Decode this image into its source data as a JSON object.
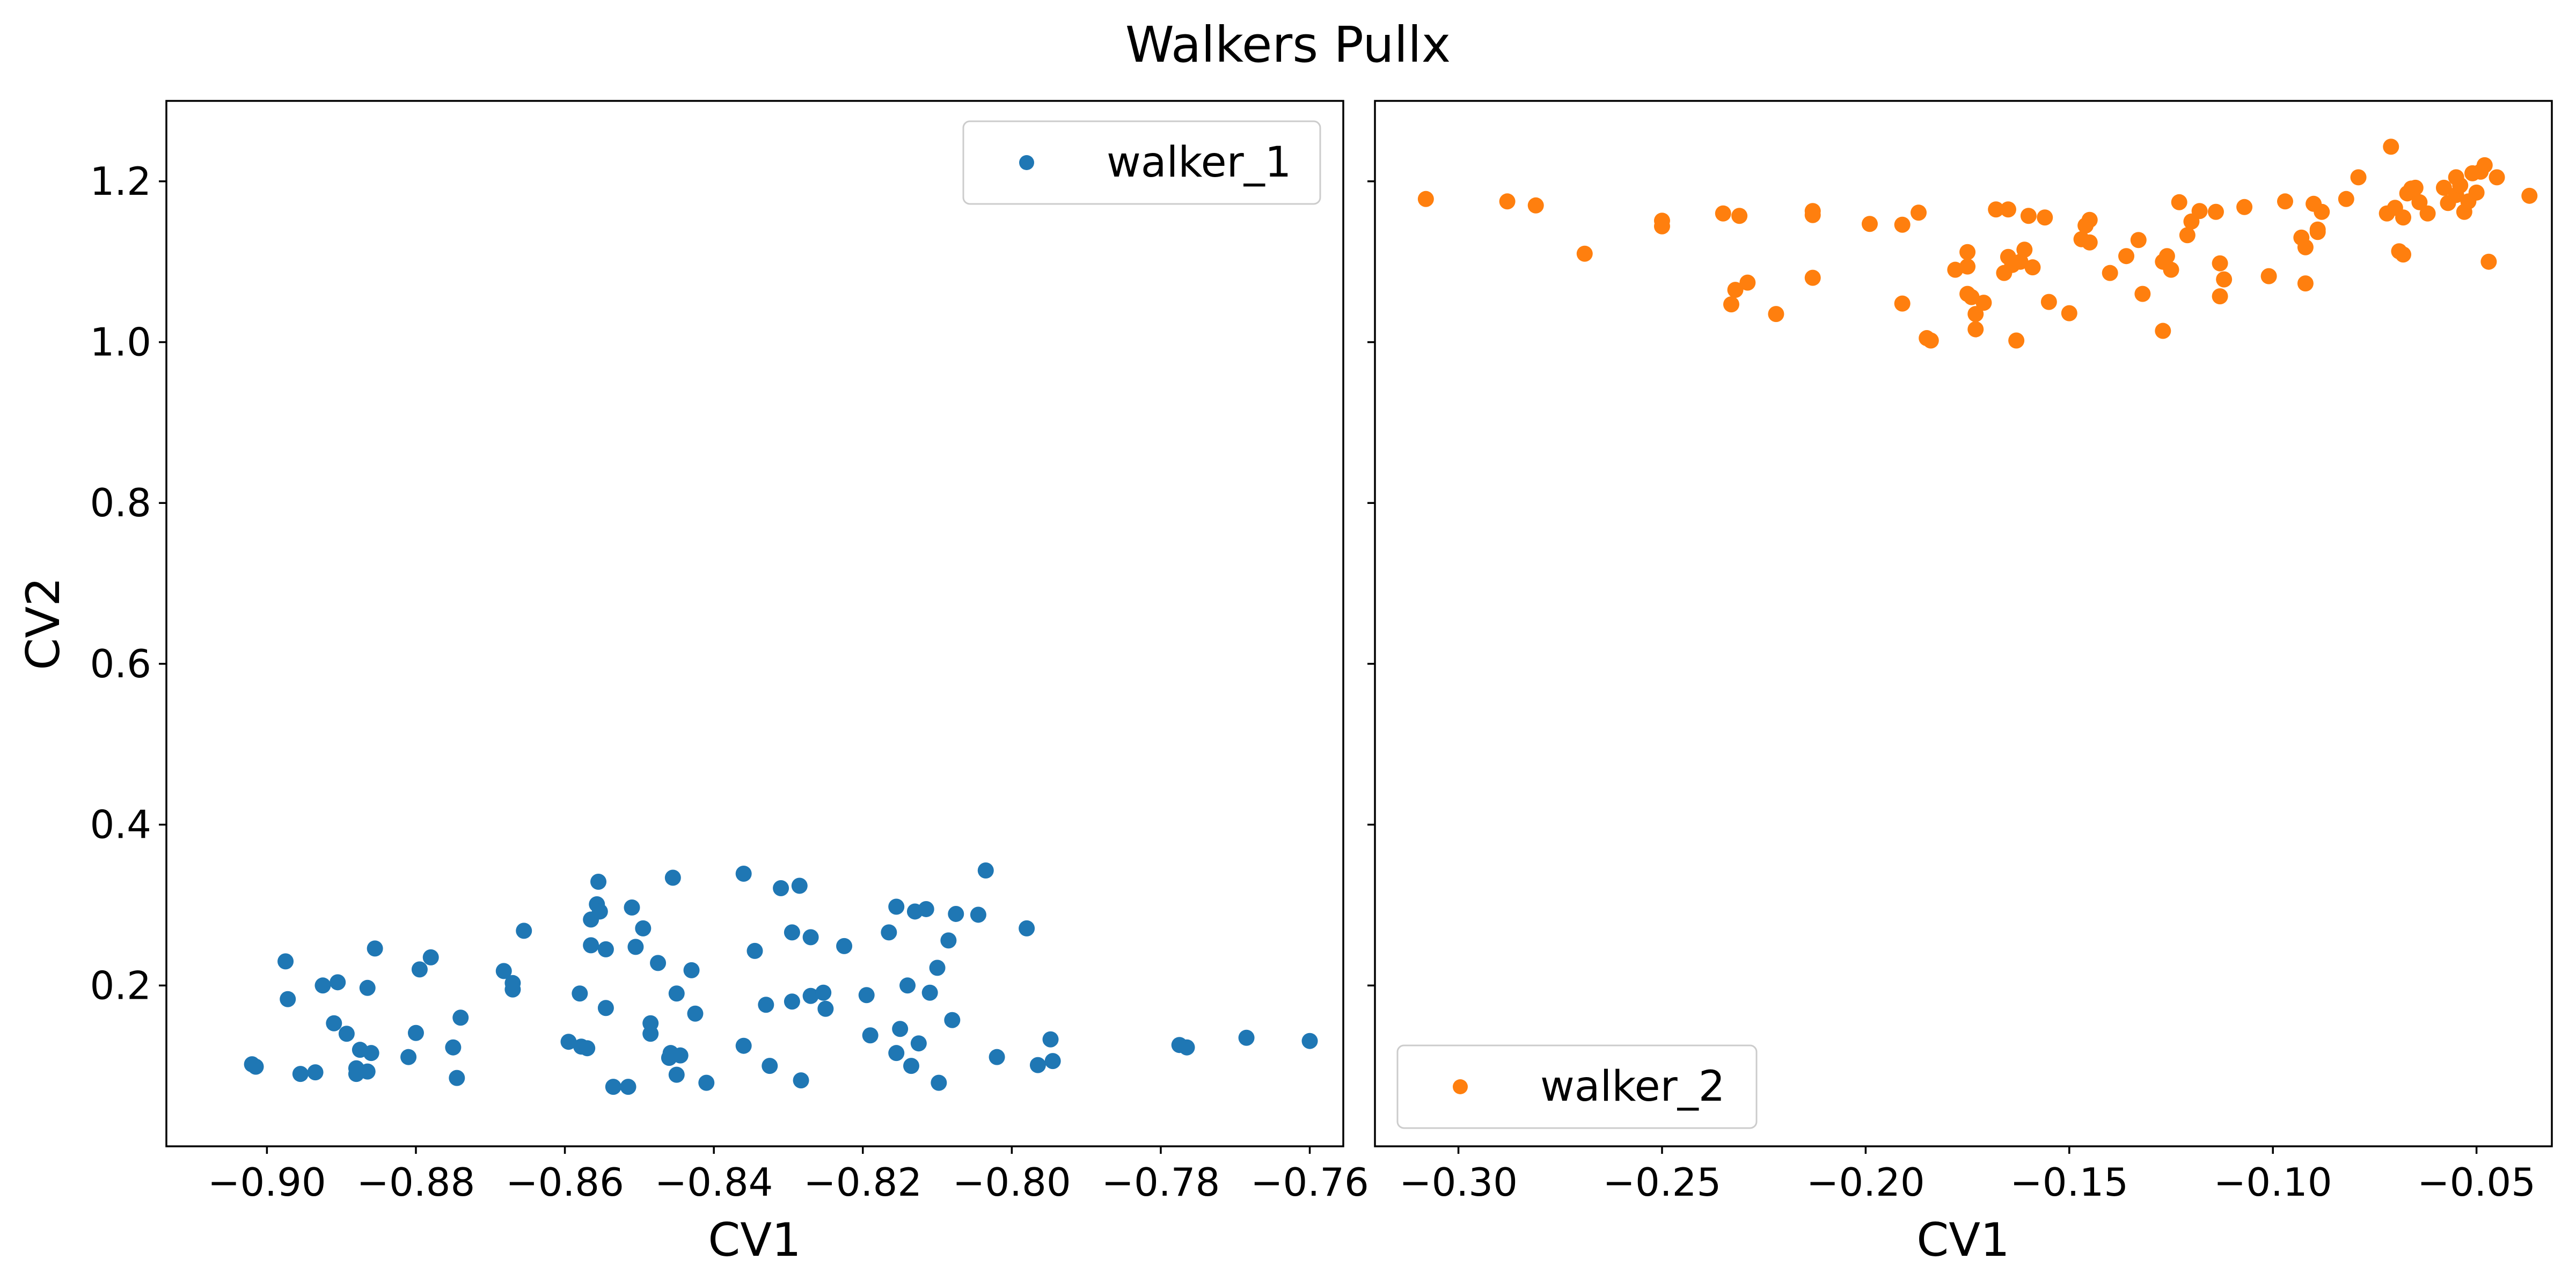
{
  "chart_data": {
    "suptitle": "Walkers Pullx",
    "shared_y": true,
    "panels": [
      {
        "type": "scatter",
        "xlabel": "CV1",
        "ylabel": "CV2",
        "xlim": [
          -0.9135,
          -0.7555
        ],
        "ylim": [
          0.0,
          1.3
        ],
        "xticks": [
          -0.9,
          -0.88,
          -0.86,
          -0.84,
          -0.82,
          -0.8,
          -0.78,
          -0.76
        ],
        "xtick_labels": [
          "−0.90",
          "−0.88",
          "−0.86",
          "−0.84",
          "−0.82",
          "−0.80",
          "−0.78",
          "−0.76"
        ],
        "yticks": [
          0.2,
          0.4,
          0.6,
          0.8,
          1.0,
          1.2
        ],
        "ytick_labels": [
          "0.2",
          "0.4",
          "0.6",
          "0.8",
          "1.0",
          "1.2"
        ],
        "legend_position": "upper right",
        "series": [
          {
            "name": "walker_1",
            "color": "#1f77b4",
            "points": [
              [
                -0.902,
                0.102
              ],
              [
                -0.9015,
                0.099
              ],
              [
                -0.8975,
                0.23
              ],
              [
                -0.8972,
                0.183
              ],
              [
                -0.8955,
                0.09
              ],
              [
                -0.8935,
                0.092
              ],
              [
                -0.8925,
                0.2
              ],
              [
                -0.891,
                0.153
              ],
              [
                -0.8905,
                0.204
              ],
              [
                -0.8893,
                0.14
              ],
              [
                -0.888,
                0.09
              ],
              [
                -0.888,
                0.097
              ],
              [
                -0.8875,
                0.12
              ],
              [
                -0.8865,
                0.093
              ],
              [
                -0.8865,
                0.197
              ],
              [
                -0.886,
                0.116
              ],
              [
                -0.8855,
                0.246
              ],
              [
                -0.881,
                0.111
              ],
              [
                -0.88,
                0.141
              ],
              [
                -0.8795,
                0.22
              ],
              [
                -0.878,
                0.235
              ],
              [
                -0.875,
                0.123
              ],
              [
                -0.8745,
                0.085
              ],
              [
                -0.874,
                0.16
              ],
              [
                -0.8682,
                0.218
              ],
              [
                -0.867,
                0.195
              ],
              [
                -0.867,
                0.203
              ],
              [
                -0.8655,
                0.268
              ],
              [
                -0.8595,
                0.13
              ],
              [
                -0.858,
                0.19
              ],
              [
                -0.8578,
                0.124
              ],
              [
                -0.857,
                0.122
              ],
              [
                -0.8565,
                0.25
              ],
              [
                -0.8565,
                0.282
              ],
              [
                -0.8557,
                0.301
              ],
              [
                -0.8555,
                0.329
              ],
              [
                -0.8553,
                0.292
              ],
              [
                -0.8545,
                0.245
              ],
              [
                -0.8545,
                0.172
              ],
              [
                -0.8535,
                0.074
              ],
              [
                -0.8515,
                0.074
              ],
              [
                -0.851,
                0.297
              ],
              [
                -0.8505,
                0.248
              ],
              [
                -0.8495,
                0.271
              ],
              [
                -0.8485,
                0.14
              ],
              [
                -0.8485,
                0.153
              ],
              [
                -0.8475,
                0.228
              ],
              [
                -0.846,
                0.11
              ],
              [
                -0.8458,
                0.116
              ],
              [
                -0.8455,
                0.334
              ],
              [
                -0.845,
                0.089
              ],
              [
                -0.845,
                0.19
              ],
              [
                -0.8445,
                0.113
              ],
              [
                -0.843,
                0.219
              ],
              [
                -0.8425,
                0.165
              ],
              [
                -0.841,
                0.079
              ],
              [
                -0.836,
                0.339
              ],
              [
                -0.836,
                0.125
              ],
              [
                -0.8345,
                0.243
              ],
              [
                -0.833,
                0.176
              ],
              [
                -0.8325,
                0.1
              ],
              [
                -0.831,
                0.321
              ],
              [
                -0.8295,
                0.266
              ],
              [
                -0.8295,
                0.18
              ],
              [
                -0.8285,
                0.324
              ],
              [
                -0.8283,
                0.082
              ],
              [
                -0.827,
                0.26
              ],
              [
                -0.827,
                0.187
              ],
              [
                -0.8253,
                0.191
              ],
              [
                -0.825,
                0.171
              ],
              [
                -0.8225,
                0.249
              ],
              [
                -0.8195,
                0.188
              ],
              [
                -0.819,
                0.138
              ],
              [
                -0.8165,
                0.266
              ],
              [
                -0.8155,
                0.298
              ],
              [
                -0.8155,
                0.116
              ],
              [
                -0.815,
                0.146
              ],
              [
                -0.814,
                0.2
              ],
              [
                -0.8135,
                0.1
              ],
              [
                -0.813,
                0.292
              ],
              [
                -0.8125,
                0.128
              ],
              [
                -0.8115,
                0.295
              ],
              [
                -0.811,
                0.191
              ],
              [
                -0.81,
                0.222
              ],
              [
                -0.8098,
                0.079
              ],
              [
                -0.8085,
                0.256
              ],
              [
                -0.808,
                0.157
              ],
              [
                -0.8075,
                0.289
              ],
              [
                -0.8045,
                0.288
              ],
              [
                -0.8035,
                0.343
              ],
              [
                -0.802,
                0.111
              ],
              [
                -0.798,
                0.271
              ],
              [
                -0.7965,
                0.101
              ],
              [
                -0.7948,
                0.133
              ],
              [
                -0.7945,
                0.106
              ],
              [
                -0.7775,
                0.126
              ],
              [
                -0.7765,
                0.123
              ],
              [
                -0.7685,
                0.135
              ],
              [
                -0.76,
                0.131
              ]
            ]
          }
        ]
      },
      {
        "type": "scatter",
        "xlabel": "CV1",
        "ylabel": "",
        "xlim": [
          -0.3205,
          -0.0315
        ],
        "ylim": [
          0.0,
          1.3
        ],
        "xticks": [
          -0.3,
          -0.25,
          -0.2,
          -0.15,
          -0.1,
          -0.05
        ],
        "xtick_labels": [
          "−0.30",
          "−0.25",
          "−0.20",
          "−0.15",
          "−0.10",
          "−0.05"
        ],
        "yticks": [
          0.2,
          0.4,
          0.6,
          0.8,
          1.0,
          1.2
        ],
        "ytick_labels": [],
        "legend_position": "lower left",
        "series": [
          {
            "name": "walker_2",
            "color": "#ff7f0e",
            "points": [
              [
                -0.308,
                1.178
              ],
              [
                -0.288,
                1.175
              ],
              [
                -0.281,
                1.17
              ],
              [
                -0.269,
                1.11
              ],
              [
                -0.25,
                1.151
              ],
              [
                -0.25,
                1.144
              ],
              [
                -0.235,
                1.16
              ],
              [
                -0.233,
                1.047
              ],
              [
                -0.232,
                1.065
              ],
              [
                -0.231,
                1.157
              ],
              [
                -0.229,
                1.074
              ],
              [
                -0.222,
                1.035
              ],
              [
                -0.213,
                1.163
              ],
              [
                -0.213,
                1.158
              ],
              [
                -0.213,
                1.08
              ],
              [
                -0.199,
                1.147
              ],
              [
                -0.191,
                1.146
              ],
              [
                -0.191,
                1.048
              ],
              [
                -0.187,
                1.161
              ],
              [
                -0.185,
                1.005
              ],
              [
                -0.184,
                1.002
              ],
              [
                -0.178,
                1.09
              ],
              [
                -0.175,
                1.112
              ],
              [
                -0.175,
                1.094
              ],
              [
                -0.175,
                1.06
              ],
              [
                -0.174,
                1.056
              ],
              [
                -0.173,
                1.035
              ],
              [
                -0.173,
                1.016
              ],
              [
                -0.171,
                1.049
              ],
              [
                -0.168,
                1.165
              ],
              [
                -0.166,
                1.086
              ],
              [
                -0.165,
                1.165
              ],
              [
                -0.165,
                1.106
              ],
              [
                -0.164,
                1.096
              ],
              [
                -0.163,
                1.002
              ],
              [
                -0.162,
                1.1
              ],
              [
                -0.161,
                1.115
              ],
              [
                -0.16,
                1.157
              ],
              [
                -0.159,
                1.093
              ],
              [
                -0.156,
                1.155
              ],
              [
                -0.155,
                1.05
              ],
              [
                -0.15,
                1.036
              ],
              [
                -0.147,
                1.128
              ],
              [
                -0.146,
                1.145
              ],
              [
                -0.145,
                1.152
              ],
              [
                -0.145,
                1.124
              ],
              [
                -0.14,
                1.086
              ],
              [
                -0.136,
                1.107
              ],
              [
                -0.133,
                1.127
              ],
              [
                -0.132,
                1.06
              ],
              [
                -0.127,
                1.014
              ],
              [
                -0.127,
                1.1
              ],
              [
                -0.126,
                1.107
              ],
              [
                -0.125,
                1.09
              ],
              [
                -0.123,
                1.174
              ],
              [
                -0.121,
                1.133
              ],
              [
                -0.12,
                1.15
              ],
              [
                -0.118,
                1.163
              ],
              [
                -0.114,
                1.162
              ],
              [
                -0.113,
                1.098
              ],
              [
                -0.113,
                1.057
              ],
              [
                -0.112,
                1.078
              ],
              [
                -0.107,
                1.168
              ],
              [
                -0.101,
                1.082
              ],
              [
                -0.097,
                1.175
              ],
              [
                -0.093,
                1.13
              ],
              [
                -0.092,
                1.118
              ],
              [
                -0.092,
                1.073
              ],
              [
                -0.09,
                1.172
              ],
              [
                -0.089,
                1.14
              ],
              [
                -0.089,
                1.137
              ],
              [
                -0.088,
                1.162
              ],
              [
                -0.082,
                1.178
              ],
              [
                -0.079,
                1.205
              ],
              [
                -0.072,
                1.16
              ],
              [
                -0.071,
                1.243
              ],
              [
                -0.07,
                1.167
              ],
              [
                -0.069,
                1.113
              ],
              [
                -0.068,
                1.109
              ],
              [
                -0.068,
                1.155
              ],
              [
                -0.067,
                1.185
              ],
              [
                -0.066,
                1.191
              ],
              [
                -0.065,
                1.192
              ],
              [
                -0.064,
                1.174
              ],
              [
                -0.062,
                1.16
              ],
              [
                -0.058,
                1.192
              ],
              [
                -0.057,
                1.173
              ],
              [
                -0.055,
                1.183
              ],
              [
                -0.055,
                1.205
              ],
              [
                -0.054,
                1.195
              ],
              [
                -0.053,
                1.162
              ],
              [
                -0.052,
                1.175
              ],
              [
                -0.051,
                1.21
              ],
              [
                -0.05,
                1.186
              ],
              [
                -0.049,
                1.212
              ],
              [
                -0.048,
                1.22
              ],
              [
                -0.047,
                1.1
              ],
              [
                -0.045,
                1.205
              ],
              [
                -0.037,
                1.182
              ]
            ]
          }
        ]
      }
    ]
  }
}
